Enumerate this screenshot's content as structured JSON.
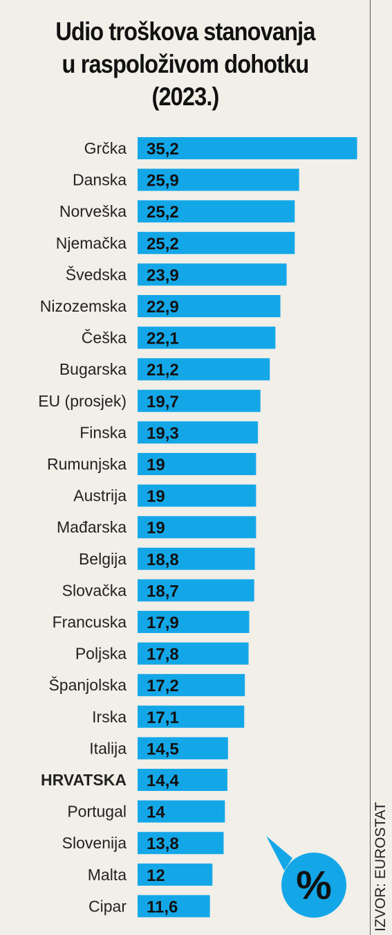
{
  "title_lines": [
    "Udio troškova stanovanja",
    "u raspoloživom dohotku",
    "(2023.)"
  ],
  "source": "IZVOR: EUROSTAT",
  "unit_badge": "%",
  "colors": {
    "bar": "#14a7e8",
    "background": "#f1efe8",
    "text": "#111111"
  },
  "chart_data": {
    "type": "bar",
    "orientation": "horizontal",
    "title": "Udio troškova stanovanja u raspoloživom dohotku (2023.)",
    "unit": "%",
    "categories": [
      "Grčka",
      "Danska",
      "Norveška",
      "Njemačka",
      "Švedska",
      "Nizozemska",
      "Češka",
      "Bugarska",
      "EU (prosjek)",
      "Finska",
      "Rumunjska",
      "Austrija",
      "Mađarska",
      "Belgija",
      "Slovačka",
      "Francuska",
      "Poljska",
      "Španjolska",
      "Irska",
      "Italija",
      "HRVATSKA",
      "Portugal",
      "Slovenija",
      "Malta",
      "Cipar"
    ],
    "values": [
      35.2,
      25.9,
      25.2,
      25.2,
      23.9,
      22.9,
      22.1,
      21.2,
      19.7,
      19.3,
      19,
      19,
      19,
      18.8,
      18.7,
      17.9,
      17.8,
      17.2,
      17.1,
      14.5,
      14.4,
      14,
      13.8,
      12,
      11.6
    ],
    "value_labels": [
      "35,2",
      "25,9",
      "25,2",
      "25,2",
      "23,9",
      "22,9",
      "22,1",
      "21,2",
      "19,7",
      "19,3",
      "19",
      "19",
      "19",
      "18,8",
      "18,7",
      "17,9",
      "17,8",
      "17,2",
      "17,1",
      "14,5",
      "14,4",
      "14",
      "13,8",
      "12",
      "11,6"
    ],
    "highlight": "HRVATSKA",
    "grid": false,
    "legend": "none"
  }
}
